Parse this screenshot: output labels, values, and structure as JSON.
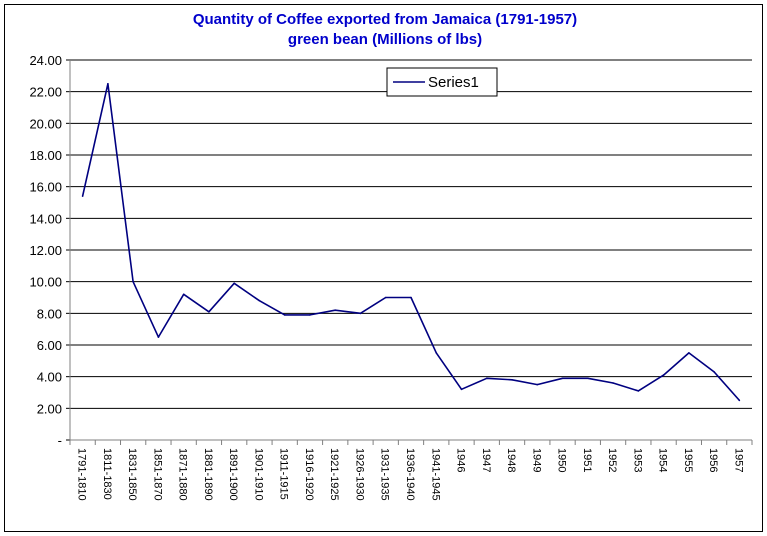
{
  "chart_data": {
    "type": "line",
    "title": "Quantity of Coffee exported from Jamaica (1791-1957)",
    "subtitle": "green bean (Millions of  lbs)",
    "xlabel": "",
    "ylabel": "",
    "ylim": [
      0,
      24
    ],
    "yticks": [
      "-",
      "2.00",
      "4.00",
      "6.00",
      "8.00",
      "10.00",
      "12.00",
      "14.00",
      "16.00",
      "18.00",
      "20.00",
      "22.00",
      "24.00"
    ],
    "grid": true,
    "legend_position": "top-center",
    "line_color": "#000080",
    "categories": [
      "1791-1810",
      "1811-1830",
      "1831-1850",
      "1851-1870",
      "1871-1880",
      "1881-1890",
      "1891-1900",
      "1901-1910",
      "1911-1915",
      "1916-1920",
      "1921-1925",
      "1926-1930",
      "1931-1935",
      "1936-1940",
      "1941-1945",
      "1946",
      "1947",
      "1948",
      "1949",
      "1950",
      "1951",
      "1952",
      "1953",
      "1954",
      "1955",
      "1956",
      "1957"
    ],
    "series": [
      {
        "name": "Series1",
        "values": [
          15.4,
          22.5,
          10.0,
          6.5,
          9.2,
          8.1,
          9.9,
          8.8,
          7.9,
          7.9,
          8.2,
          8.0,
          9.0,
          9.0,
          5.5,
          3.2,
          3.9,
          3.8,
          3.5,
          3.9,
          3.9,
          3.6,
          3.1,
          4.1,
          5.5,
          4.3,
          2.5
        ]
      }
    ]
  }
}
